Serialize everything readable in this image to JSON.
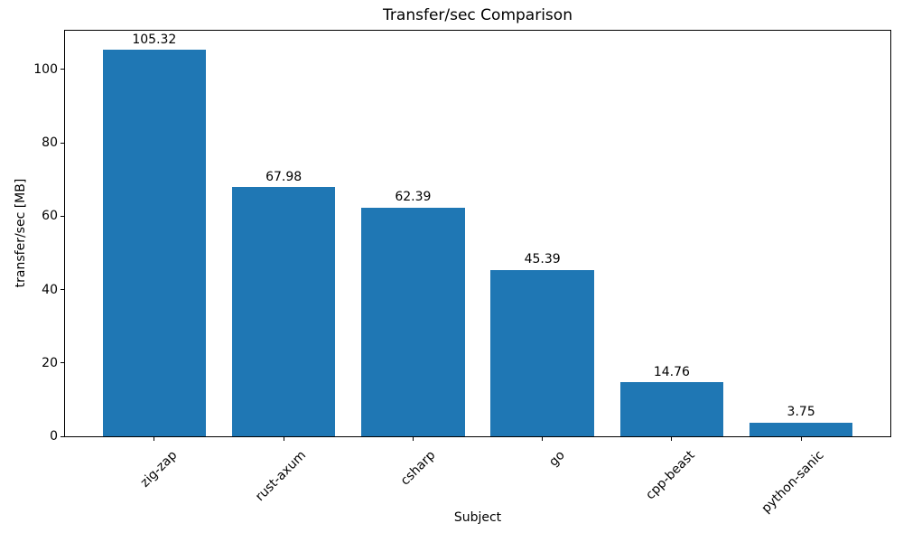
{
  "chart_data": {
    "type": "bar",
    "title": "Transfer/sec Comparison",
    "xlabel": "Subject",
    "ylabel": "transfer/sec [MB]",
    "categories": [
      "zig-zap",
      "rust-axum",
      "csharp",
      "go",
      "cpp-beast",
      "python-sanic"
    ],
    "values": [
      105.32,
      67.98,
      62.39,
      45.39,
      14.76,
      3.75
    ],
    "value_labels": [
      "105.32",
      "67.98",
      "62.39",
      "45.39",
      "14.76",
      "3.75"
    ],
    "yticks": [
      0,
      20,
      40,
      60,
      80,
      100
    ],
    "ylim": [
      0,
      110.59
    ],
    "bar_color": "#1f77b4",
    "axis_color": "#000000",
    "grid": false,
    "legend": false,
    "x_tick_rotation_deg": 45
  }
}
